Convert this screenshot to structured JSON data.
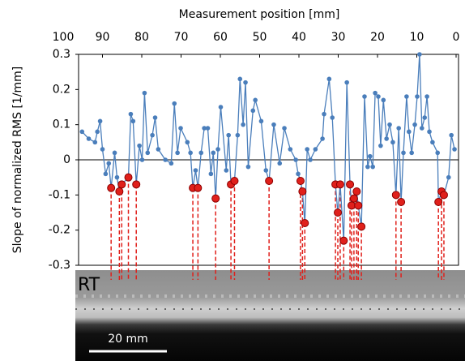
{
  "chart_data": {
    "type": "line",
    "title": "Measurement position [mm]",
    "y_label": "Slope of normalized RMS [1/mm]",
    "xlim": [
      100,
      0
    ],
    "xticks": [
      100,
      90,
      80,
      70,
      60,
      50,
      40,
      30,
      20,
      10,
      0
    ],
    "ylim": [
      -0.3,
      0.3
    ],
    "yticks": [
      0.3,
      0.2,
      0.1,
      0,
      -0.1,
      -0.2,
      -0.3
    ],
    "grid": false,
    "series": [
      {
        "color": "#4a7ebb",
        "x": [
          95.2,
          93.5,
          91.9,
          91.3,
          90.6,
          90.0,
          89.2,
          88.4,
          87.8,
          86.9,
          86.3,
          85.7,
          85.1,
          83.4,
          82.8,
          82.2,
          81.4,
          80.6,
          79.9,
          79.3,
          78.5,
          77.3,
          76.6,
          75.8,
          74.0,
          72.5,
          71.7,
          70.9,
          70.1,
          68.4,
          67.6,
          67.0,
          66.3,
          65.7,
          64.9,
          64.1,
          63.2,
          62.4,
          61.8,
          61.2,
          60.6,
          59.9,
          58.5,
          57.9,
          57.3,
          56.4,
          55.6,
          55.0,
          54.2,
          53.6,
          52.9,
          51.7,
          51.1,
          49.6,
          48.4,
          47.6,
          46.4,
          44.9,
          43.7,
          42.2,
          40.8,
          40.2,
          39.6,
          39.1,
          38.5,
          37.9,
          37.1,
          35.8,
          34.0,
          33.6,
          32.3,
          31.5,
          30.7,
          30.1,
          29.5,
          28.6,
          27.8,
          27.0,
          26.6,
          26.0,
          25.3,
          24.9,
          24.1,
          23.3,
          22.5,
          21.9,
          21.2,
          20.6,
          19.8,
          19.2,
          18.5,
          17.7,
          16.9,
          16.1,
          15.3,
          14.6,
          14.0,
          13.4,
          12.6,
          12.0,
          11.3,
          10.5,
          9.9,
          9.3,
          8.7,
          8.0,
          7.4,
          6.8,
          6.0,
          4.7,
          4.5,
          3.7,
          3.1,
          1.9,
          1.2,
          0.4
        ],
        "values": [
          0.08,
          0.06,
          0.05,
          0.08,
          0.11,
          0.03,
          -0.04,
          -0.01,
          -0.08,
          0.02,
          -0.05,
          -0.09,
          -0.07,
          -0.05,
          0.13,
          0.11,
          -0.07,
          0.04,
          0.0,
          0.19,
          0.02,
          0.07,
          0.12,
          0.03,
          0.0,
          -0.01,
          0.16,
          0.02,
          0.09,
          0.05,
          0.02,
          -0.08,
          -0.03,
          -0.08,
          0.02,
          0.09,
          0.09,
          -0.04,
          0.02,
          -0.11,
          0.03,
          0.15,
          -0.03,
          0.07,
          -0.07,
          -0.06,
          0.07,
          0.23,
          0.1,
          0.22,
          -0.02,
          0.14,
          0.17,
          0.11,
          -0.03,
          -0.06,
          0.1,
          -0.01,
          0.09,
          0.03,
          0.0,
          -0.04,
          -0.06,
          -0.09,
          -0.18,
          0.03,
          0.0,
          0.03,
          0.06,
          0.13,
          0.23,
          0.12,
          -0.07,
          -0.15,
          -0.07,
          -0.23,
          0.22,
          -0.07,
          -0.13,
          -0.11,
          -0.09,
          -0.13,
          -0.19,
          0.18,
          -0.02,
          0.01,
          -0.02,
          0.19,
          0.18,
          0.04,
          0.17,
          0.06,
          0.1,
          0.05,
          -0.1,
          0.09,
          -0.12,
          0.02,
          0.18,
          0.08,
          0.02,
          0.1,
          0.18,
          0.3,
          0.09,
          0.12,
          0.18,
          0.08,
          0.05,
          0.02,
          -0.12,
          -0.09,
          -0.1,
          -0.05,
          0.07,
          0.03
        ]
      },
      {
        "color": "#e0201b",
        "x": [
          87.8,
          85.7,
          85.1,
          83.4,
          81.4,
          67.0,
          65.7,
          61.2,
          57.3,
          56.4,
          47.6,
          39.6,
          39.1,
          38.5,
          30.7,
          30.1,
          29.5,
          28.6,
          27.0,
          26.6,
          26.0,
          25.3,
          24.9,
          24.1,
          15.3,
          14.0,
          4.5,
          3.7,
          3.1
        ],
        "values": [
          -0.08,
          -0.09,
          -0.07,
          -0.05,
          -0.07,
          -0.08,
          -0.08,
          -0.11,
          -0.07,
          -0.06,
          -0.06,
          -0.06,
          -0.09,
          -0.18,
          -0.07,
          -0.15,
          -0.07,
          -0.23,
          -0.07,
          -0.13,
          -0.11,
          -0.09,
          -0.13,
          -0.19,
          -0.1,
          -0.12,
          -0.12,
          -0.09,
          -0.1
        ]
      }
    ]
  },
  "image": {
    "label": "RT",
    "scale_bar": "20 mm"
  }
}
